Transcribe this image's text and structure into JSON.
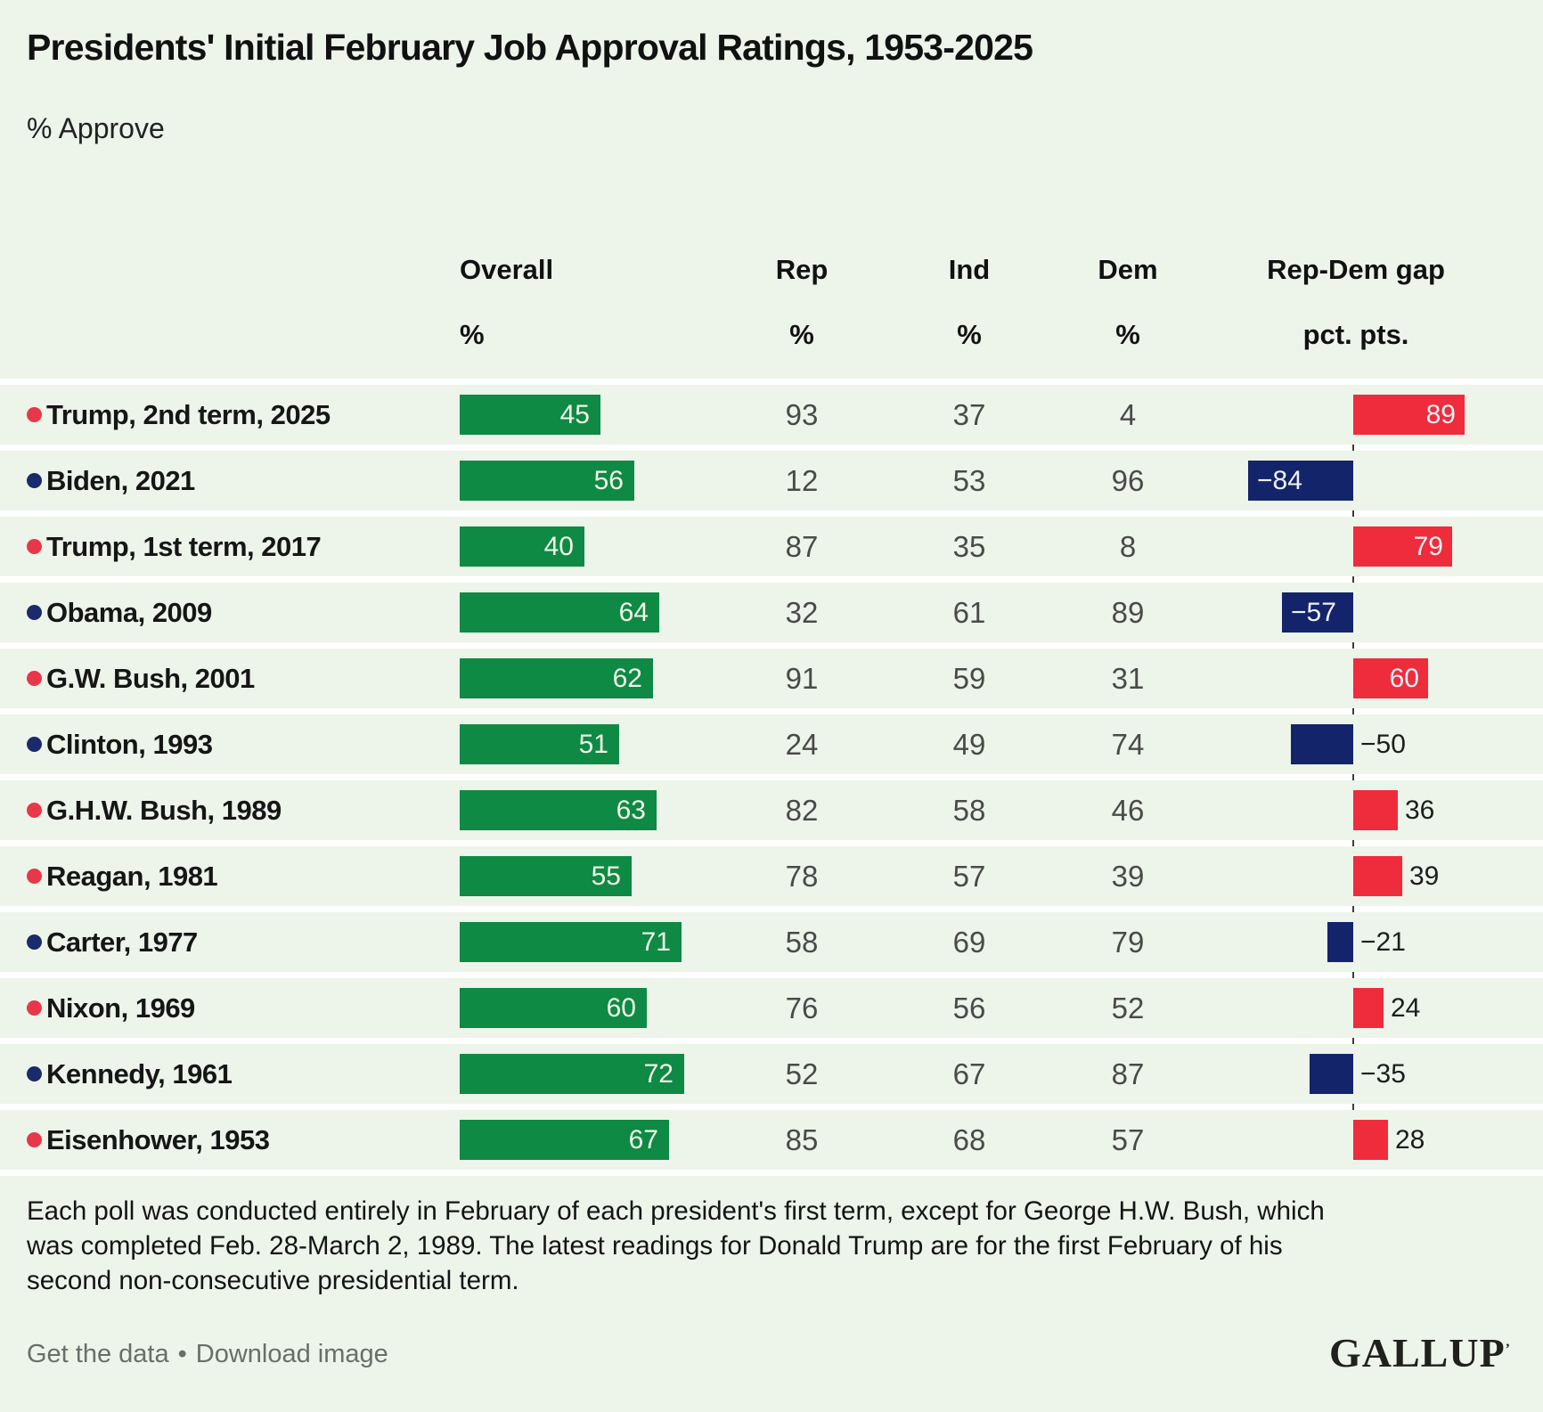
{
  "title": "Presidents' Initial February Job Approval Ratings, 1953-2025",
  "subtitle": "% Approve",
  "table": {
    "headers": {
      "overall": "Overall",
      "rep": "Rep",
      "ind": "Ind",
      "dem": "Dem",
      "gap": "Rep-Dem gap"
    },
    "units": {
      "overall": "%",
      "rep": "%",
      "ind": "%",
      "dem": "%",
      "gap": "pct. pts."
    }
  },
  "chart_data": {
    "type": "bar",
    "title": "Presidents' Initial February Job Approval Ratings, 1953-2025",
    "subtitle": "% Approve",
    "columns": [
      "Overall %",
      "Rep %",
      "Ind %",
      "Dem %",
      "Rep-Dem gap pct. pts."
    ],
    "overall_axis_range": [
      0,
      100
    ],
    "gap_axis_range": [
      -100,
      100
    ],
    "rows": [
      {
        "label": "Trump, 2nd term, 2025",
        "party": "R",
        "overall": 45,
        "rep": 93,
        "ind": 37,
        "dem": 4,
        "gap": 89
      },
      {
        "label": "Biden, 2021",
        "party": "D",
        "overall": 56,
        "rep": 12,
        "ind": 53,
        "dem": 96,
        "gap": -84
      },
      {
        "label": "Trump, 1st term, 2017",
        "party": "R",
        "overall": 40,
        "rep": 87,
        "ind": 35,
        "dem": 8,
        "gap": 79
      },
      {
        "label": "Obama, 2009",
        "party": "D",
        "overall": 64,
        "rep": 32,
        "ind": 61,
        "dem": 89,
        "gap": -57
      },
      {
        "label": "G.W. Bush, 2001",
        "party": "R",
        "overall": 62,
        "rep": 91,
        "ind": 59,
        "dem": 31,
        "gap": 60
      },
      {
        "label": "Clinton, 1993",
        "party": "D",
        "overall": 51,
        "rep": 24,
        "ind": 49,
        "dem": 74,
        "gap": -50
      },
      {
        "label": "G.H.W. Bush, 1989",
        "party": "R",
        "overall": 63,
        "rep": 82,
        "ind": 58,
        "dem": 46,
        "gap": 36
      },
      {
        "label": "Reagan, 1981",
        "party": "R",
        "overall": 55,
        "rep": 78,
        "ind": 57,
        "dem": 39,
        "gap": 39
      },
      {
        "label": "Carter, 1977",
        "party": "D",
        "overall": 71,
        "rep": 58,
        "ind": 69,
        "dem": 79,
        "gap": -21
      },
      {
        "label": "Nixon, 1969",
        "party": "R",
        "overall": 60,
        "rep": 76,
        "ind": 56,
        "dem": 52,
        "gap": 24
      },
      {
        "label": "Kennedy, 1961",
        "party": "D",
        "overall": 72,
        "rep": 52,
        "ind": 67,
        "dem": 87,
        "gap": -35
      },
      {
        "label": "Eisenhower, 1953",
        "party": "R",
        "overall": 67,
        "rep": 85,
        "ind": 68,
        "dem": 57,
        "gap": 28
      }
    ]
  },
  "colors": {
    "background": "#edf4ea",
    "overall_bar": "#0e8a44",
    "gap_positive": "#ee2c3c",
    "gap_negative": "#14246b",
    "dot_republican": "#e9374a",
    "dot_democrat": "#1b2a6b"
  },
  "footnote": "Each poll was conducted entirely in February of each president's first term, except for George H.W. Bush, which was completed Feb. 28-March 2, 1989. The latest readings for Donald Trump are for the first February of his second non-consecutive presidential term.",
  "footer": {
    "get_data_label": "Get the data",
    "separator": "•",
    "download_label": "Download image",
    "logo": "GALLUP"
  }
}
